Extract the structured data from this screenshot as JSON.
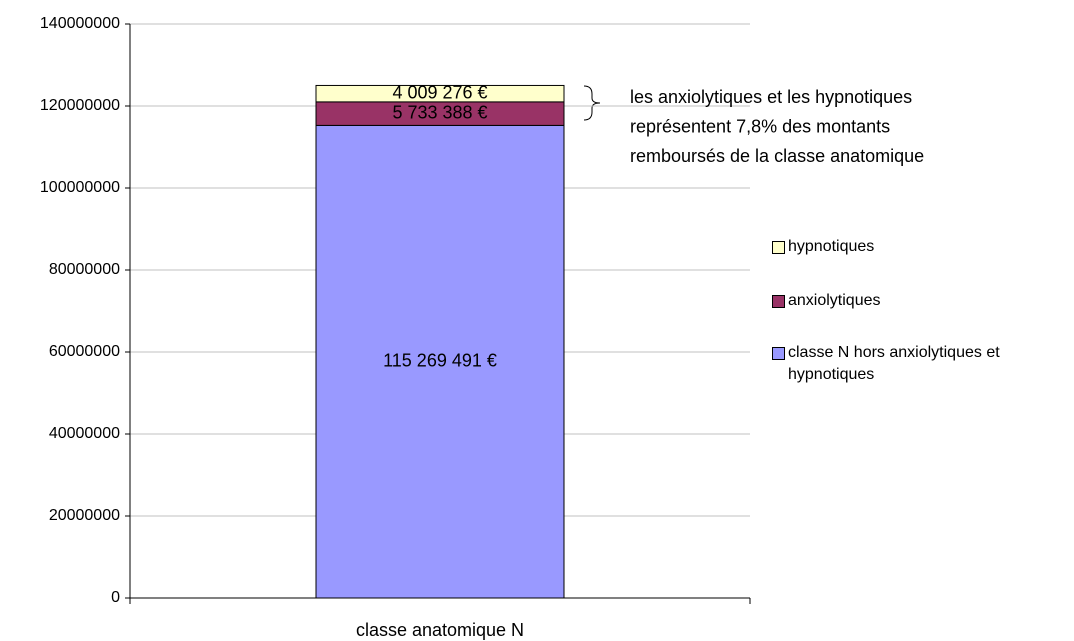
{
  "chart_data": {
    "type": "stacked_bar",
    "categories": [
      "classe anatomique N"
    ],
    "series": [
      {
        "name": "classe N hors anxiolytiques et hypnotiques",
        "color": "#9999ff",
        "values": [
          115269491
        ],
        "value_labels": [
          "115 269 491 €"
        ]
      },
      {
        "name": "anxiolytiques",
        "color": "#993366",
        "values": [
          5733388
        ],
        "value_labels": [
          "5 733 388 €"
        ]
      },
      {
        "name": "hypnotiques",
        "color": "#ffffcc",
        "values": [
          4009276
        ],
        "value_labels": [
          "4 009 276 €"
        ]
      }
    ],
    "annotation": [
      "les anxiolytiques et les hypnotiques",
      "représentent 7,8% des montants",
      "remboursés de la classe anatomique"
    ],
    "ylim": [
      0,
      140000000
    ],
    "yticks": [
      0,
      20000000,
      40000000,
      60000000,
      80000000,
      100000000,
      120000000,
      140000000
    ],
    "grid": true,
    "legend": "right"
  }
}
